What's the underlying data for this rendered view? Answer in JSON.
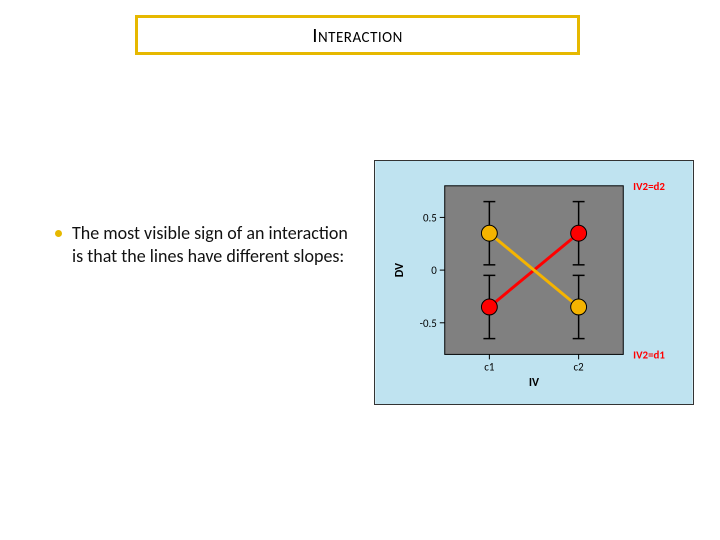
{
  "title": "Interaction",
  "title_border_color": "#e6b800",
  "bullet_text": "The most visible sign of an interaction is that the lines have different slopes:",
  "bullet_color": "#e6b800",
  "chart": {
    "type": "interaction-plot",
    "outer_bg": "#bfe3f0",
    "plot_bg": "#808080",
    "plot_border": "#000000",
    "x_label": "IV",
    "y_label": "DV",
    "x_categories": [
      "c1",
      "c2"
    ],
    "y_ticks": [
      -0.5,
      0,
      0.5
    ],
    "y_lim": [
      -0.8,
      0.8
    ],
    "errorbar_half": 0.3,
    "errorbar_color": "#000000",
    "errorbar_width": 1.5,
    "cap_width": 6,
    "series": [
      {
        "name": "IV2=d2",
        "label": "IV2=d2",
        "label_color": "#ff0000",
        "line_color": "#ff0000",
        "marker_fill": "#ff0000",
        "marker_stroke": "#000000",
        "marker_r": 8,
        "line_width": 3,
        "values": [
          -0.35,
          0.35
        ]
      },
      {
        "name": "IV2=d1",
        "label": "IV2=d1",
        "label_color": "#ff0000",
        "line_color": "#f5b400",
        "marker_fill": "#f5b400",
        "marker_stroke": "#000000",
        "marker_r": 8,
        "line_width": 3,
        "values": [
          0.35,
          -0.35
        ]
      }
    ],
    "label_fontsize": 12,
    "tick_fontsize": 11
  }
}
